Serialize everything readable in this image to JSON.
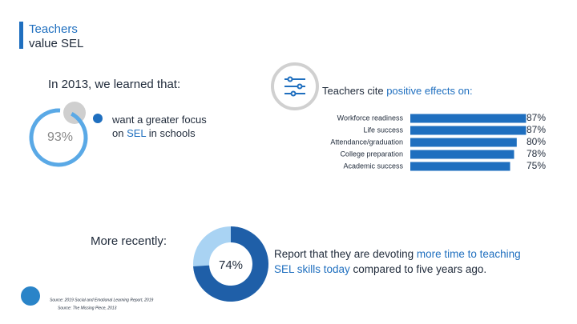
{
  "title_lines": [
    "Teachers",
    "value SEL"
  ],
  "past": {
    "heading": "In 2013, we learned that:",
    "value": 93,
    "value_label": "93%",
    "text_lines": [
      [
        {
          "text": "want a greater focus"
        }
      ],
      [
        {
          "text": "on "
        },
        {
          "text": "SEL",
          "highlight": true
        },
        {
          "text": " in schools"
        }
      ]
    ]
  },
  "effects": {
    "heading": [
      {
        "text": "Teachers cite "
      },
      {
        "text": "positive effects on:",
        "highlight": true
      }
    ],
    "categories": [
      "Workforce readiness",
      "Life success",
      "Attendance/graduation",
      "College preparation",
      "Academic success"
    ],
    "values": [
      87,
      87,
      80,
      78,
      75
    ],
    "value_labels": [
      "87%",
      "87%",
      "80%",
      "78%",
      "75%"
    ],
    "xlim": [
      0,
      100
    ],
    "color": "#1f6fbf"
  },
  "recent": {
    "heading": "More recently:",
    "value": 74,
    "value_label": "74%",
    "text_lines": [
      [
        {
          "text": "Report that they are devoting "
        },
        {
          "text": "more time to teaching",
          "highlight": true
        }
      ],
      [
        {
          "text": "SEL skills today",
          "highlight": true
        },
        {
          "text": " compared to five years ago."
        }
      ]
    ]
  },
  "sources": [
    "Source: 2019 Social and Emotional Learning Report, 2019",
    "Source: The Missing Piece, 2013"
  ]
}
